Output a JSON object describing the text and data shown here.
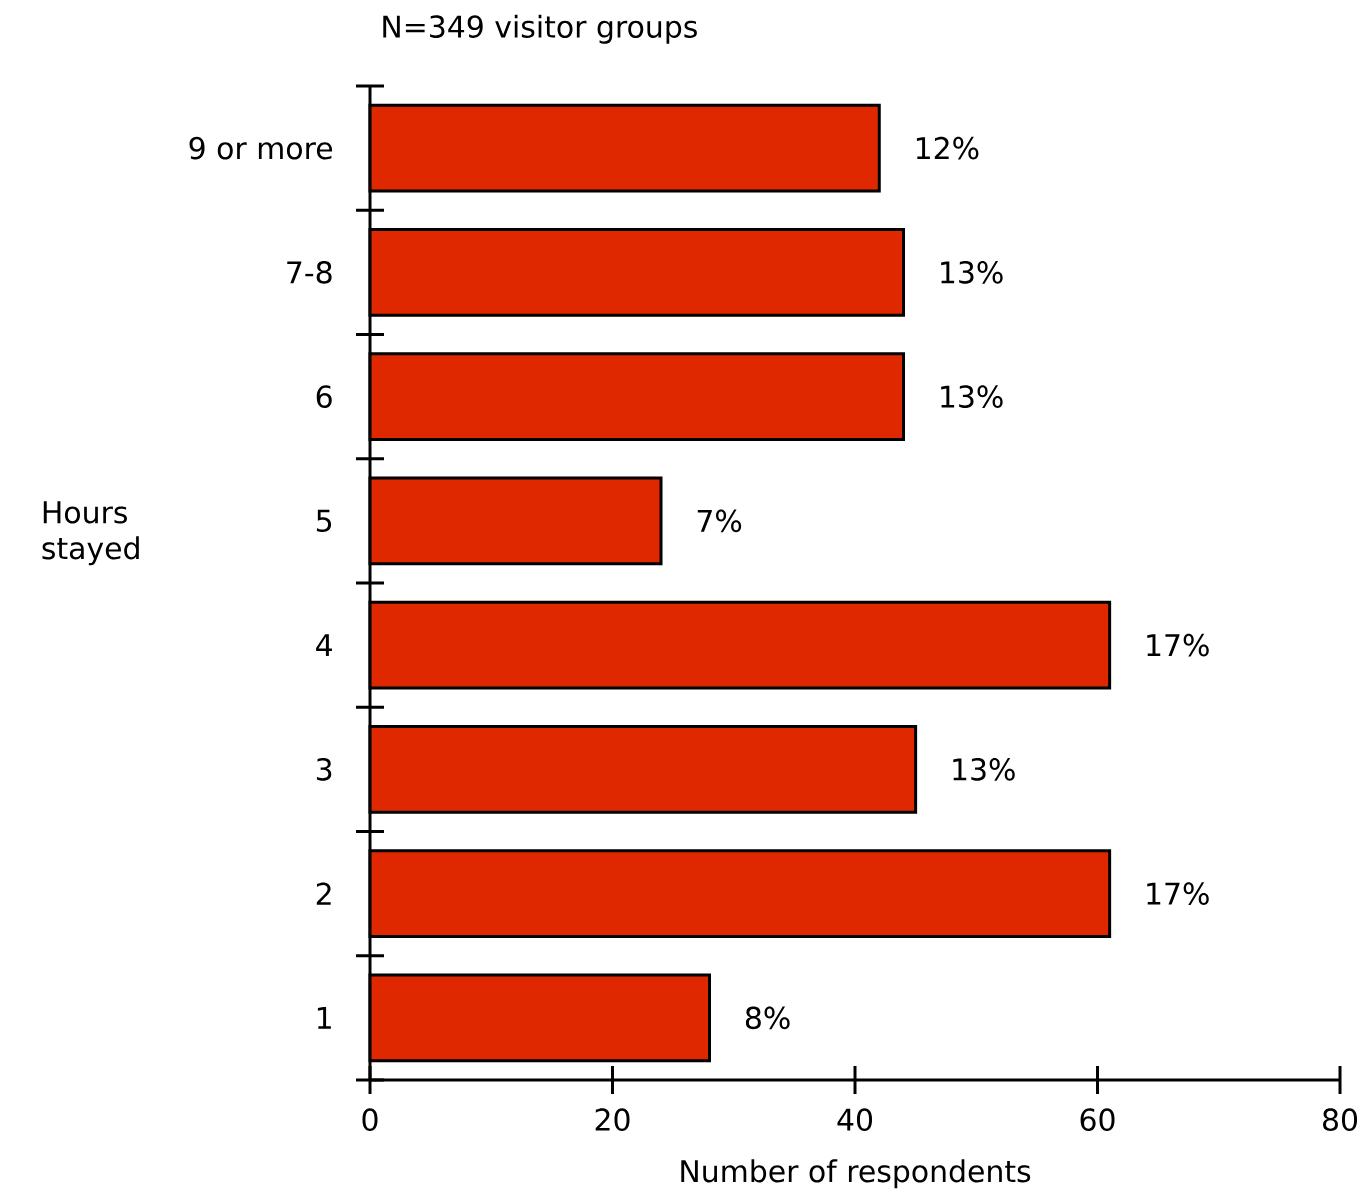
{
  "chart_data": {
    "type": "bar",
    "orientation": "horizontal",
    "title": "N=349 visitor groups",
    "ylabel": "Hours stayed",
    "xlabel": "Number of respondents",
    "categories": [
      "9 or more",
      "7-8",
      "6",
      "5",
      "4",
      "3",
      "2",
      "1"
    ],
    "values": [
      42,
      44,
      44,
      24,
      61,
      45,
      61,
      28
    ],
    "annotations": [
      {
        "text": "12%",
        "x": 42,
        "y": "9 or more"
      },
      {
        "text": "13%",
        "x": 44,
        "y": "7-8"
      },
      {
        "text": "13%",
        "x": 44,
        "y": "6"
      },
      {
        "text": "7%",
        "x": 24,
        "y": "5"
      },
      {
        "text": "17%",
        "x": 61,
        "y": "4"
      },
      {
        "text": "13%",
        "x": 45,
        "y": "3"
      },
      {
        "text": "17%",
        "x": 61,
        "y": "2"
      },
      {
        "text": "8%",
        "x": 28,
        "y": "1"
      }
    ],
    "color": "#e02800",
    "xlim": [
      0,
      80
    ],
    "xticks": [
      0,
      20,
      40,
      60,
      80
    ],
    "grid": false
  }
}
